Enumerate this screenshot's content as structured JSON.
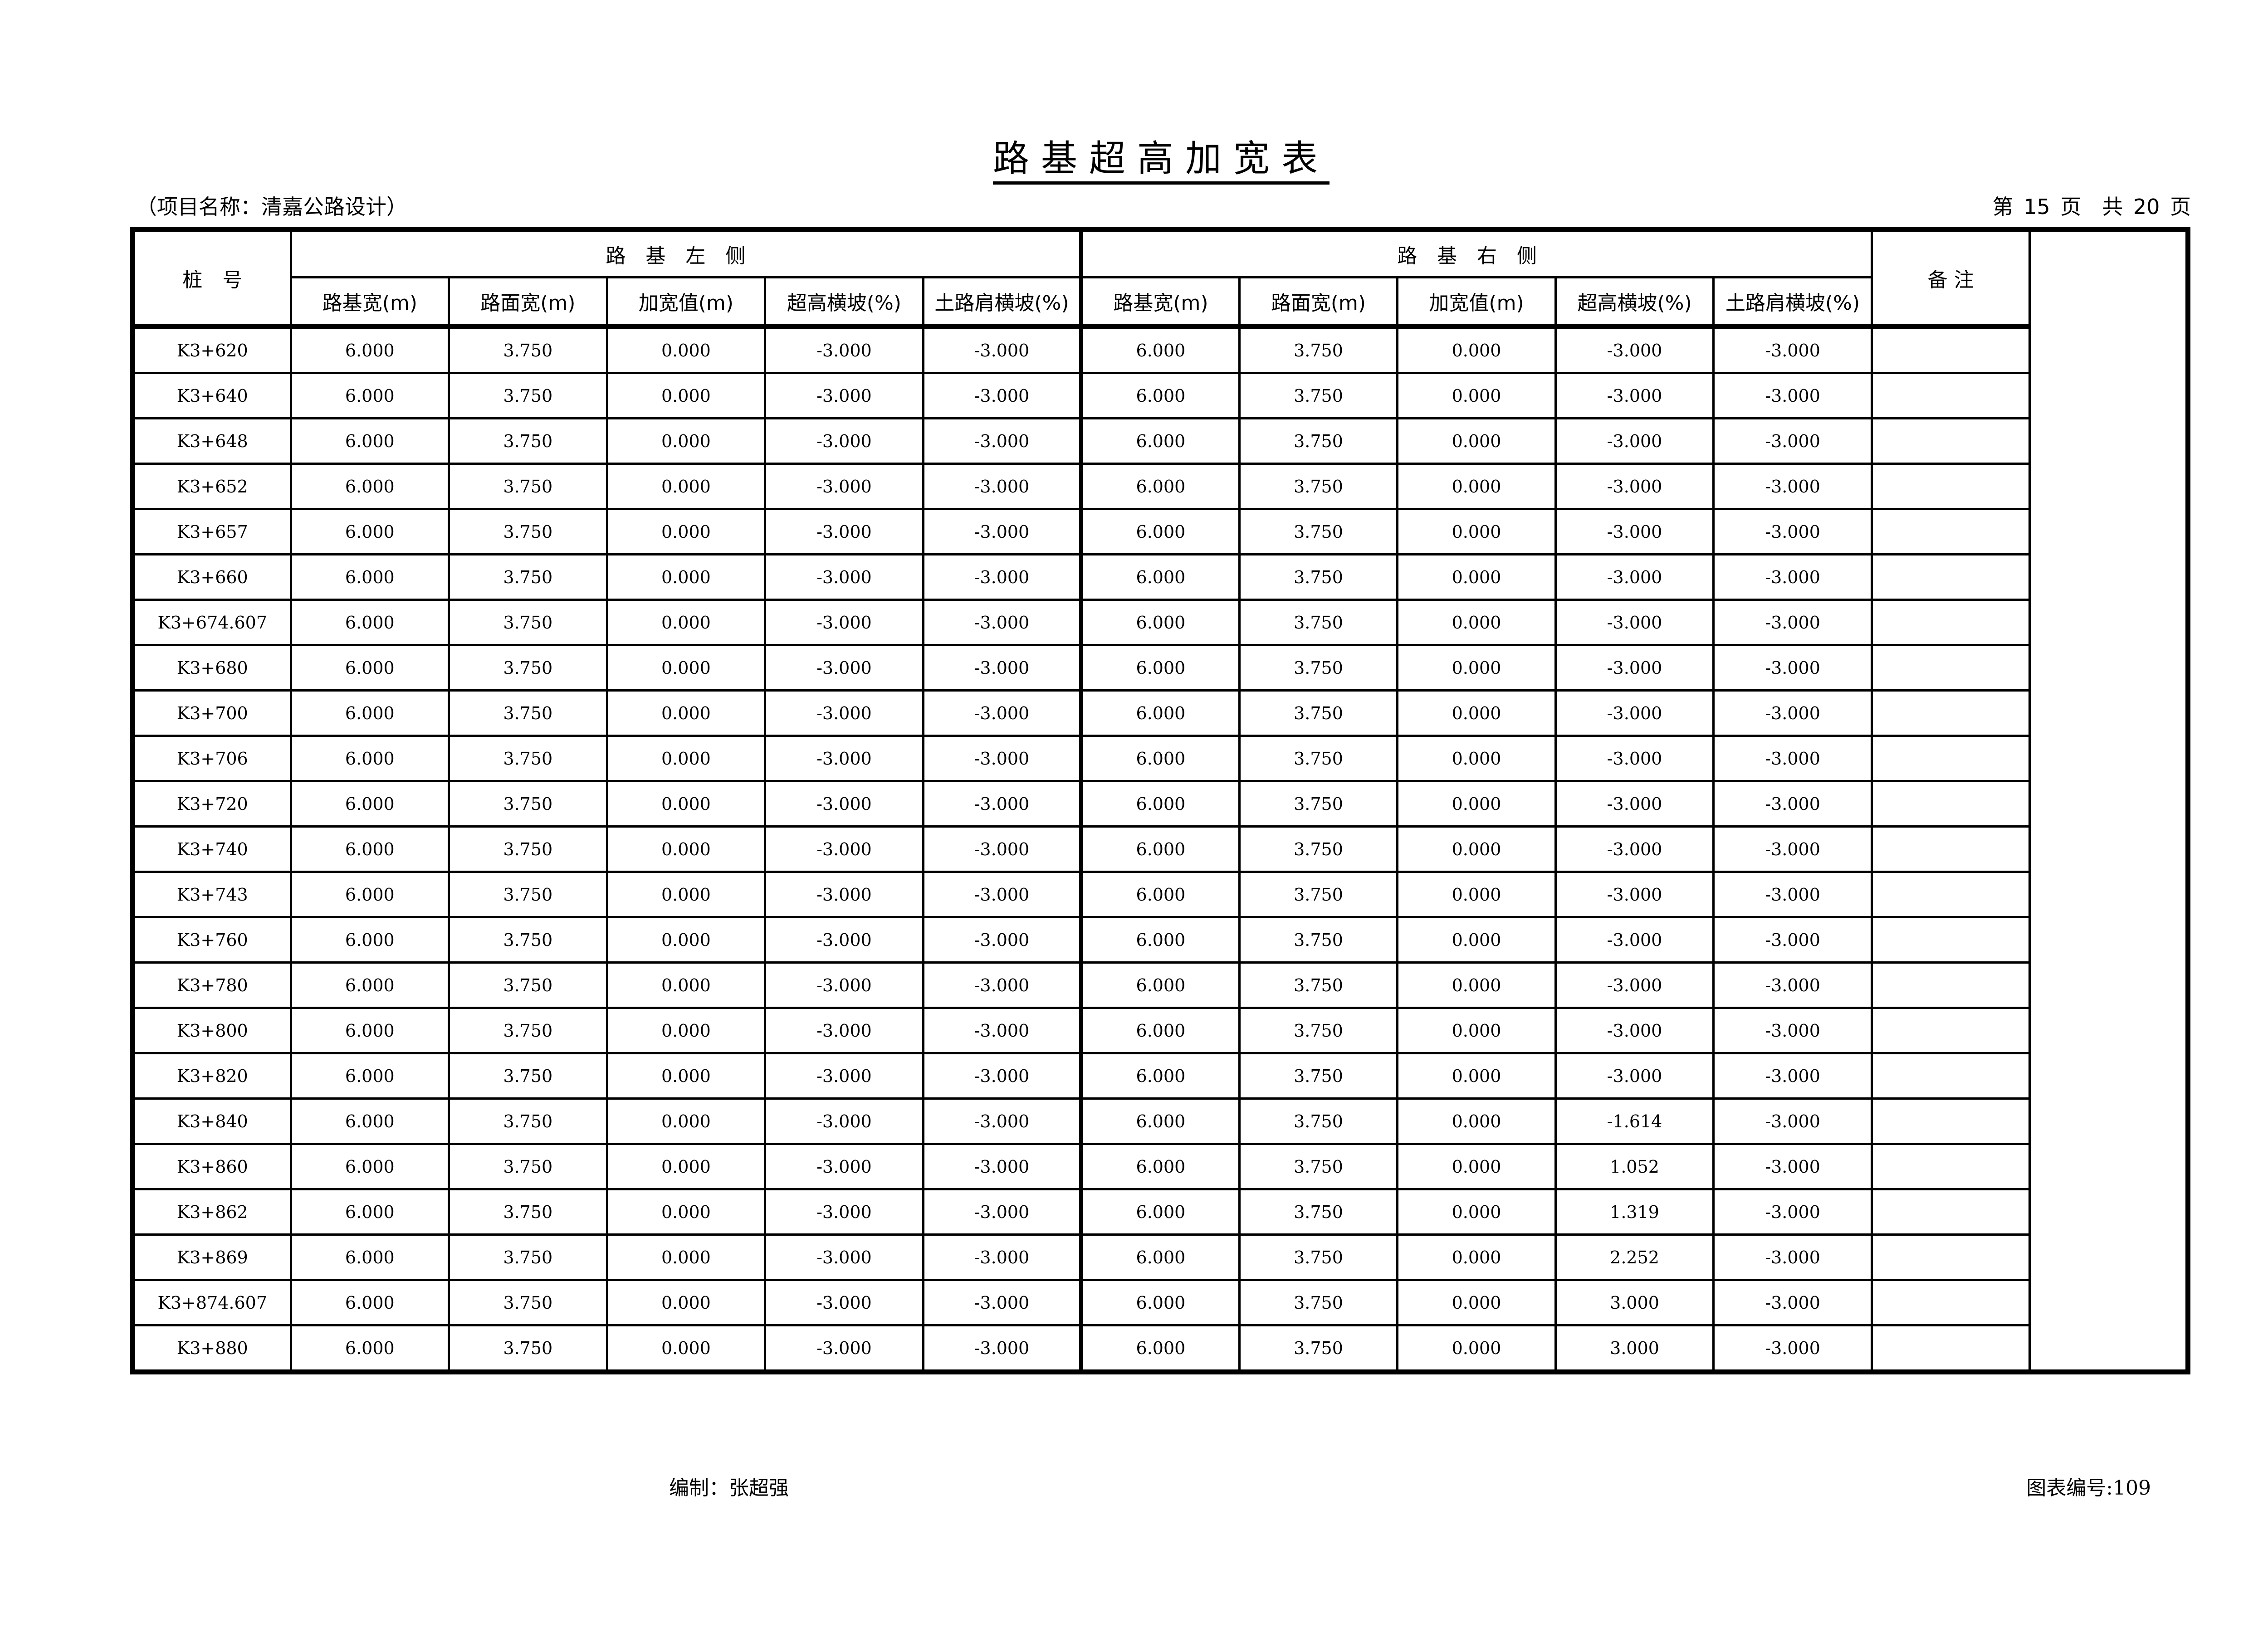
{
  "title": "路基超高加宽表",
  "project": "（项目名称：清嘉公路设计）",
  "page_info": "第 15 页　共 20 页",
  "table": {
    "station_header": "桩　号",
    "left_group": "路基左侧",
    "right_group": "路基右侧",
    "remarks_header": "备 注",
    "left_columns": [
      "路基宽(m)",
      "路面宽(m)",
      "加宽值(m)",
      "超高横坡(%)",
      "土路肩横坡(%)"
    ],
    "right_columns": [
      "路基宽(m)",
      "路面宽(m)",
      "加宽值(m)",
      "超高横坡(%)",
      "土路肩横坡(%)"
    ],
    "rows": [
      {
        "station": "K3+620",
        "left": [
          "6.000",
          "3.750",
          "0.000",
          "-3.000",
          "-3.000"
        ],
        "right": [
          "6.000",
          "3.750",
          "0.000",
          "-3.000",
          "-3.000"
        ],
        "remark": ""
      },
      {
        "station": "K3+640",
        "left": [
          "6.000",
          "3.750",
          "0.000",
          "-3.000",
          "-3.000"
        ],
        "right": [
          "6.000",
          "3.750",
          "0.000",
          "-3.000",
          "-3.000"
        ],
        "remark": ""
      },
      {
        "station": "K3+648",
        "left": [
          "6.000",
          "3.750",
          "0.000",
          "-3.000",
          "-3.000"
        ],
        "right": [
          "6.000",
          "3.750",
          "0.000",
          "-3.000",
          "-3.000"
        ],
        "remark": ""
      },
      {
        "station": "K3+652",
        "left": [
          "6.000",
          "3.750",
          "0.000",
          "-3.000",
          "-3.000"
        ],
        "right": [
          "6.000",
          "3.750",
          "0.000",
          "-3.000",
          "-3.000"
        ],
        "remark": ""
      },
      {
        "station": "K3+657",
        "left": [
          "6.000",
          "3.750",
          "0.000",
          "-3.000",
          "-3.000"
        ],
        "right": [
          "6.000",
          "3.750",
          "0.000",
          "-3.000",
          "-3.000"
        ],
        "remark": ""
      },
      {
        "station": "K3+660",
        "left": [
          "6.000",
          "3.750",
          "0.000",
          "-3.000",
          "-3.000"
        ],
        "right": [
          "6.000",
          "3.750",
          "0.000",
          "-3.000",
          "-3.000"
        ],
        "remark": ""
      },
      {
        "station": "K3+674.607",
        "left": [
          "6.000",
          "3.750",
          "0.000",
          "-3.000",
          "-3.000"
        ],
        "right": [
          "6.000",
          "3.750",
          "0.000",
          "-3.000",
          "-3.000"
        ],
        "remark": ""
      },
      {
        "station": "K3+680",
        "left": [
          "6.000",
          "3.750",
          "0.000",
          "-3.000",
          "-3.000"
        ],
        "right": [
          "6.000",
          "3.750",
          "0.000",
          "-3.000",
          "-3.000"
        ],
        "remark": ""
      },
      {
        "station": "K3+700",
        "left": [
          "6.000",
          "3.750",
          "0.000",
          "-3.000",
          "-3.000"
        ],
        "right": [
          "6.000",
          "3.750",
          "0.000",
          "-3.000",
          "-3.000"
        ],
        "remark": ""
      },
      {
        "station": "K3+706",
        "left": [
          "6.000",
          "3.750",
          "0.000",
          "-3.000",
          "-3.000"
        ],
        "right": [
          "6.000",
          "3.750",
          "0.000",
          "-3.000",
          "-3.000"
        ],
        "remark": ""
      },
      {
        "station": "K3+720",
        "left": [
          "6.000",
          "3.750",
          "0.000",
          "-3.000",
          "-3.000"
        ],
        "right": [
          "6.000",
          "3.750",
          "0.000",
          "-3.000",
          "-3.000"
        ],
        "remark": ""
      },
      {
        "station": "K3+740",
        "left": [
          "6.000",
          "3.750",
          "0.000",
          "-3.000",
          "-3.000"
        ],
        "right": [
          "6.000",
          "3.750",
          "0.000",
          "-3.000",
          "-3.000"
        ],
        "remark": ""
      },
      {
        "station": "K3+743",
        "left": [
          "6.000",
          "3.750",
          "0.000",
          "-3.000",
          "-3.000"
        ],
        "right": [
          "6.000",
          "3.750",
          "0.000",
          "-3.000",
          "-3.000"
        ],
        "remark": ""
      },
      {
        "station": "K3+760",
        "left": [
          "6.000",
          "3.750",
          "0.000",
          "-3.000",
          "-3.000"
        ],
        "right": [
          "6.000",
          "3.750",
          "0.000",
          "-3.000",
          "-3.000"
        ],
        "remark": ""
      },
      {
        "station": "K3+780",
        "left": [
          "6.000",
          "3.750",
          "0.000",
          "-3.000",
          "-3.000"
        ],
        "right": [
          "6.000",
          "3.750",
          "0.000",
          "-3.000",
          "-3.000"
        ],
        "remark": ""
      },
      {
        "station": "K3+800",
        "left": [
          "6.000",
          "3.750",
          "0.000",
          "-3.000",
          "-3.000"
        ],
        "right": [
          "6.000",
          "3.750",
          "0.000",
          "-3.000",
          "-3.000"
        ],
        "remark": ""
      },
      {
        "station": "K3+820",
        "left": [
          "6.000",
          "3.750",
          "0.000",
          "-3.000",
          "-3.000"
        ],
        "right": [
          "6.000",
          "3.750",
          "0.000",
          "-3.000",
          "-3.000"
        ],
        "remark": ""
      },
      {
        "station": "K3+840",
        "left": [
          "6.000",
          "3.750",
          "0.000",
          "-3.000",
          "-3.000"
        ],
        "right": [
          "6.000",
          "3.750",
          "0.000",
          "-1.614",
          "-3.000"
        ],
        "remark": ""
      },
      {
        "station": "K3+860",
        "left": [
          "6.000",
          "3.750",
          "0.000",
          "-3.000",
          "-3.000"
        ],
        "right": [
          "6.000",
          "3.750",
          "0.000",
          "1.052",
          "-3.000"
        ],
        "remark": ""
      },
      {
        "station": "K3+862",
        "left": [
          "6.000",
          "3.750",
          "0.000",
          "-3.000",
          "-3.000"
        ],
        "right": [
          "6.000",
          "3.750",
          "0.000",
          "1.319",
          "-3.000"
        ],
        "remark": ""
      },
      {
        "station": "K3+869",
        "left": [
          "6.000",
          "3.750",
          "0.000",
          "-3.000",
          "-3.000"
        ],
        "right": [
          "6.000",
          "3.750",
          "0.000",
          "2.252",
          "-3.000"
        ],
        "remark": ""
      },
      {
        "station": "K3+874.607",
        "left": [
          "6.000",
          "3.750",
          "0.000",
          "-3.000",
          "-3.000"
        ],
        "right": [
          "6.000",
          "3.750",
          "0.000",
          "3.000",
          "-3.000"
        ],
        "remark": ""
      },
      {
        "station": "K3+880",
        "left": [
          "6.000",
          "3.750",
          "0.000",
          "-3.000",
          "-3.000"
        ],
        "right": [
          "6.000",
          "3.750",
          "0.000",
          "3.000",
          "-3.000"
        ],
        "remark": ""
      }
    ]
  },
  "footer": {
    "compiler": "编制：张超强",
    "chart_number": "图表编号:109"
  }
}
